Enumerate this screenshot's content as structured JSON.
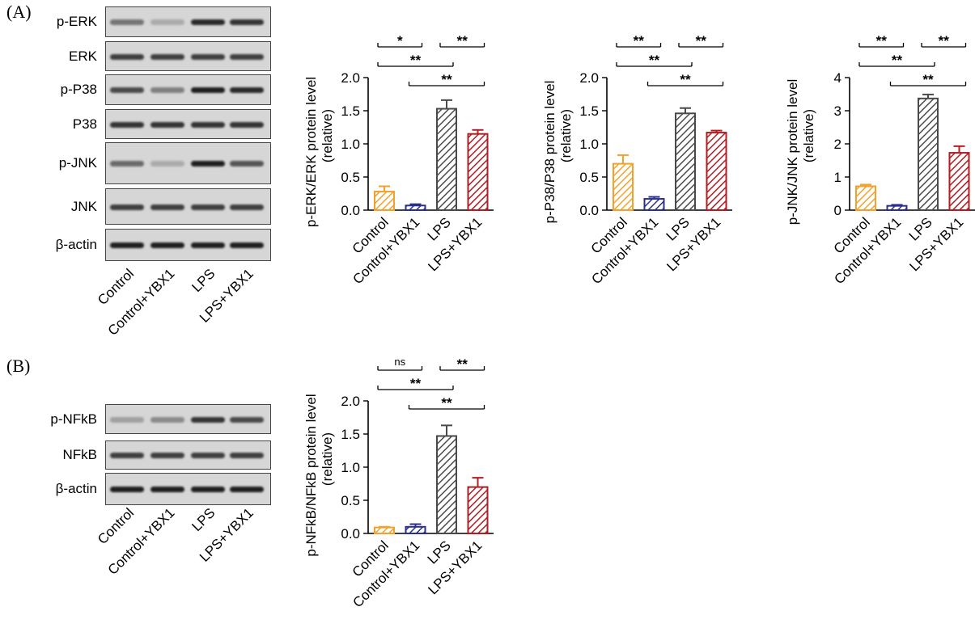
{
  "panels": [
    {
      "label": "(A)"
    },
    {
      "label": "(B)"
    }
  ],
  "blots": {
    "A": {
      "rows": [
        {
          "name": "p-ERK",
          "intensity": [
            0.55,
            0.3,
            0.9,
            0.85
          ]
        },
        {
          "name": "ERK",
          "intensity": [
            0.8,
            0.8,
            0.8,
            0.8
          ]
        },
        {
          "name": "p-P38",
          "intensity": [
            0.75,
            0.5,
            0.95,
            0.9
          ]
        },
        {
          "name": "P38",
          "intensity": [
            0.85,
            0.85,
            0.85,
            0.85
          ]
        },
        {
          "name": "p-JNK",
          "intensity": [
            0.6,
            0.3,
            0.95,
            0.7
          ]
        },
        {
          "name": "JNK",
          "intensity": [
            0.8,
            0.8,
            0.8,
            0.8
          ]
        },
        {
          "name": "β-actin",
          "intensity": [
            0.95,
            0.95,
            0.95,
            0.95
          ]
        }
      ],
      "lanes": [
        "Control",
        "Control+YBX1",
        "LPS",
        "LPS+YBX1"
      ]
    },
    "B": {
      "rows": [
        {
          "name": "p-NFkB",
          "intensity": [
            0.35,
            0.45,
            0.85,
            0.75
          ]
        },
        {
          "name": "NFkB",
          "intensity": [
            0.8,
            0.8,
            0.8,
            0.8
          ]
        },
        {
          "name": "β-actin",
          "intensity": [
            0.95,
            0.95,
            0.95,
            0.95
          ]
        }
      ],
      "lanes": [
        "Control",
        "Control+YBX1",
        "LPS",
        "LPS+YBX1"
      ]
    }
  },
  "colors": {
    "Control": "#f5a02a",
    "Control+YBX1": "#2a2f8f",
    "LPS": "#4a4a4a",
    "LPS+YBX1": "#b01e23"
  },
  "chart_data": [
    {
      "type": "bar",
      "categories": [
        "Control",
        "Control+YBX1",
        "LPS",
        "LPS+YBX1"
      ],
      "values": [
        0.28,
        0.07,
        1.53,
        1.15
      ],
      "errors": [
        0.08,
        0.02,
        0.13,
        0.06
      ],
      "ylabel": "p-ERK/ERK protein level",
      "ylabel2": "(relative)",
      "ylim": [
        0,
        2.0
      ],
      "yticks": [
        "0.0",
        "0.5",
        "1.0",
        "1.5",
        "2.0"
      ],
      "brackets": [
        {
          "from": 0,
          "to": 1,
          "label": "*"
        },
        {
          "from": 2,
          "to": 3,
          "label": "**"
        },
        {
          "from": 0,
          "to": 2,
          "label": "**"
        },
        {
          "from": 1,
          "to": 3,
          "label": "**"
        }
      ]
    },
    {
      "type": "bar",
      "categories": [
        "Control",
        "Control+YBX1",
        "LPS",
        "LPS+YBX1"
      ],
      "values": [
        0.7,
        0.17,
        1.46,
        1.17
      ],
      "errors": [
        0.13,
        0.03,
        0.08,
        0.03
      ],
      "ylabel": "p-P38/P38 protein level",
      "ylabel2": "(relative)",
      "ylim": [
        0,
        2.0
      ],
      "yticks": [
        "0.0",
        "0.5",
        "1.0",
        "1.5",
        "2.0"
      ],
      "brackets": [
        {
          "from": 0,
          "to": 1,
          "label": "**"
        },
        {
          "from": 2,
          "to": 3,
          "label": "**"
        },
        {
          "from": 0,
          "to": 2,
          "label": "**"
        },
        {
          "from": 1,
          "to": 3,
          "label": "**"
        }
      ]
    },
    {
      "type": "bar",
      "categories": [
        "Control",
        "Control+YBX1",
        "LPS",
        "LPS+YBX1"
      ],
      "values": [
        0.72,
        0.13,
        3.37,
        1.73
      ],
      "errors": [
        0.05,
        0.03,
        0.12,
        0.2
      ],
      "ylabel": "p-JNK/JNK protein level",
      "ylabel2": "(relative)",
      "ylim": [
        0,
        4
      ],
      "yticks": [
        "0",
        "1",
        "2",
        "3",
        "4"
      ],
      "brackets": [
        {
          "from": 0,
          "to": 1,
          "label": "**"
        },
        {
          "from": 2,
          "to": 3,
          "label": "**"
        },
        {
          "from": 0,
          "to": 2,
          "label": "**"
        },
        {
          "from": 1,
          "to": 3,
          "label": "**"
        }
      ]
    },
    {
      "type": "bar",
      "categories": [
        "Control",
        "Control+YBX1",
        "LPS",
        "LPS+YBX1"
      ],
      "values": [
        0.09,
        0.1,
        1.47,
        0.7
      ],
      "errors": [
        0.01,
        0.04,
        0.16,
        0.14
      ],
      "ylabel": "p-NFkB/NFkB protein level",
      "ylabel2": "(relative)",
      "ylim": [
        0,
        2.0
      ],
      "yticks": [
        "0.0",
        "0.5",
        "1.0",
        "1.5",
        "2.0"
      ],
      "brackets": [
        {
          "from": 0,
          "to": 1,
          "label": "ns"
        },
        {
          "from": 2,
          "to": 3,
          "label": "**"
        },
        {
          "from": 0,
          "to": 2,
          "label": "**"
        },
        {
          "from": 1,
          "to": 3,
          "label": "**"
        }
      ]
    }
  ]
}
